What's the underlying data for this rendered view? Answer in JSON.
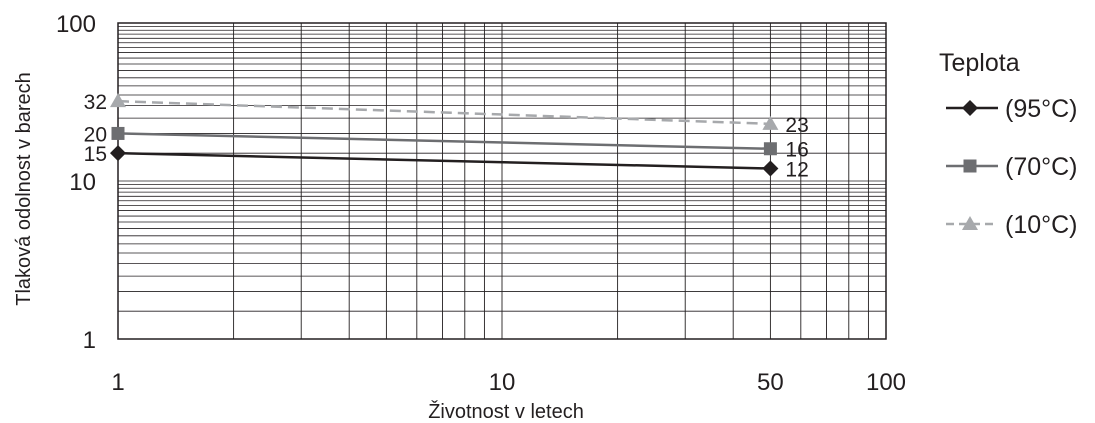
{
  "chart_data": {
    "type": "line",
    "xlabel": "Životnost v letech",
    "ylabel": "Tlaková odolnost v barech",
    "x_scale": "log",
    "y_scale": "log",
    "xlim": [
      1,
      100
    ],
    "ylim": [
      1,
      100
    ],
    "x_ticks": [
      1,
      10,
      50,
      100
    ],
    "x_tick_labels": [
      "1",
      "10",
      "50",
      "100"
    ],
    "y_ticks": [
      1,
      10,
      100
    ],
    "y_tick_labels": [
      "1",
      "10",
      "100"
    ],
    "grid": true,
    "legend": {
      "title": "Teplota",
      "position": "right"
    },
    "series": [
      {
        "name": "(95°C)",
        "color": "#231f20",
        "marker": "diamond",
        "dash": "solid",
        "x": [
          1,
          50
        ],
        "y": [
          15,
          12
        ],
        "labels": [
          "15",
          "12"
        ]
      },
      {
        "name": "(70°C)",
        "color": "#6d6e71",
        "marker": "square",
        "dash": "solid",
        "x": [
          1,
          50
        ],
        "y": [
          20,
          16
        ],
        "labels": [
          "20",
          "16"
        ]
      },
      {
        "name": "(10°C)",
        "color": "#a7a9ac",
        "marker": "triangle",
        "dash": "dashed",
        "x": [
          1,
          50
        ],
        "y": [
          32,
          23
        ],
        "labels": [
          "32",
          "23"
        ]
      }
    ]
  }
}
